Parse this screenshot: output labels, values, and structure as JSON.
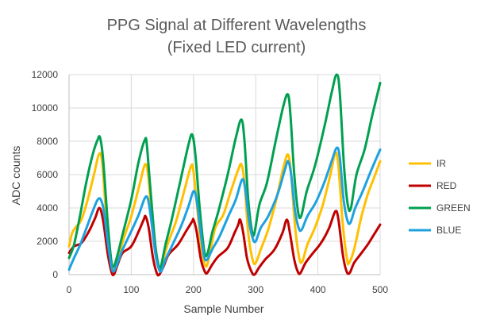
{
  "chart_data": {
    "type": "line",
    "title": [
      "PPG Signal at Different Wavelengths",
      "(Fixed LED current)"
    ],
    "xlabel": "Sample Number",
    "ylabel": "ADC counts",
    "xlim": [
      0,
      500
    ],
    "ylim": [
      0,
      12000
    ],
    "xticks": [
      0,
      100,
      200,
      300,
      400,
      500
    ],
    "yticks": [
      0,
      2000,
      4000,
      6000,
      8000,
      10000,
      12000
    ],
    "grid": true,
    "legend_position": "right",
    "series": [
      {
        "name": "IR",
        "color": "#FFC000",
        "points": [
          [
            0,
            1700
          ],
          [
            5,
            2500
          ],
          [
            12,
            2900
          ],
          [
            20,
            3300
          ],
          [
            30,
            4500
          ],
          [
            40,
            6000
          ],
          [
            48,
            7200
          ],
          [
            53,
            6800
          ],
          [
            60,
            3500
          ],
          [
            68,
            800
          ],
          [
            73,
            300
          ],
          [
            80,
            1200
          ],
          [
            88,
            2200
          ],
          [
            100,
            3500
          ],
          [
            112,
            5200
          ],
          [
            122,
            6600
          ],
          [
            127,
            6000
          ],
          [
            133,
            3500
          ],
          [
            142,
            800
          ],
          [
            146,
            300
          ],
          [
            152,
            1000
          ],
          [
            160,
            2000
          ],
          [
            172,
            3200
          ],
          [
            185,
            5000
          ],
          [
            196,
            6500
          ],
          [
            200,
            6200
          ],
          [
            206,
            4000
          ],
          [
            213,
            1500
          ],
          [
            220,
            500
          ],
          [
            226,
            1200
          ],
          [
            235,
            2800
          ],
          [
            248,
            3600
          ],
          [
            260,
            5000
          ],
          [
            272,
            6300
          ],
          [
            277,
            6600
          ],
          [
            282,
            5500
          ],
          [
            288,
            2500
          ],
          [
            295,
            900
          ],
          [
            300,
            700
          ],
          [
            308,
            1500
          ],
          [
            320,
            2700
          ],
          [
            333,
            4500
          ],
          [
            345,
            6500
          ],
          [
            352,
            7200
          ],
          [
            357,
            6000
          ],
          [
            363,
            3000
          ],
          [
            370,
            1000
          ],
          [
            375,
            800
          ],
          [
            383,
            1800
          ],
          [
            395,
            2800
          ],
          [
            408,
            4200
          ],
          [
            420,
            6000
          ],
          [
            428,
            7300
          ],
          [
            433,
            6500
          ],
          [
            440,
            3000
          ],
          [
            447,
            900
          ],
          [
            450,
            700
          ],
          [
            458,
            1500
          ],
          [
            470,
            3500
          ],
          [
            480,
            4800
          ],
          [
            490,
            5800
          ],
          [
            500,
            6800
          ]
        ]
      },
      {
        "name": "RED",
        "color": "#C00000",
        "points": [
          [
            0,
            1300
          ],
          [
            8,
            1700
          ],
          [
            20,
            1900
          ],
          [
            32,
            2600
          ],
          [
            42,
            3400
          ],
          [
            49,
            4000
          ],
          [
            55,
            3200
          ],
          [
            62,
            1300
          ],
          [
            68,
            200
          ],
          [
            72,
            0
          ],
          [
            78,
            600
          ],
          [
            86,
            1300
          ],
          [
            100,
            1700
          ],
          [
            112,
            2600
          ],
          [
            120,
            3300
          ],
          [
            123,
            3500
          ],
          [
            128,
            2800
          ],
          [
            135,
            1000
          ],
          [
            141,
            100
          ],
          [
            145,
            0
          ],
          [
            152,
            500
          ],
          [
            160,
            1200
          ],
          [
            175,
            1800
          ],
          [
            188,
            2600
          ],
          [
            198,
            3200
          ],
          [
            200,
            3300
          ],
          [
            205,
            2600
          ],
          [
            212,
            900
          ],
          [
            218,
            200
          ],
          [
            222,
            100
          ],
          [
            230,
            600
          ],
          [
            240,
            1100
          ],
          [
            255,
            1600
          ],
          [
            266,
            2500
          ],
          [
            272,
            3000
          ],
          [
            275,
            3300
          ],
          [
            280,
            2500
          ],
          [
            286,
            1000
          ],
          [
            293,
            200
          ],
          [
            298,
            0
          ],
          [
            305,
            400
          ],
          [
            315,
            900
          ],
          [
            330,
            1500
          ],
          [
            343,
            2500
          ],
          [
            350,
            3300
          ],
          [
            355,
            2500
          ],
          [
            362,
            900
          ],
          [
            368,
            150
          ],
          [
            372,
            100
          ],
          [
            380,
            700
          ],
          [
            390,
            1200
          ],
          [
            405,
            1900
          ],
          [
            418,
            2800
          ],
          [
            428,
            3800
          ],
          [
            433,
            3300
          ],
          [
            440,
            1200
          ],
          [
            446,
            200
          ],
          [
            451,
            100
          ],
          [
            458,
            700
          ],
          [
            468,
            1200
          ],
          [
            480,
            1800
          ],
          [
            490,
            2400
          ],
          [
            500,
            3000
          ]
        ]
      },
      {
        "name": "GREEN",
        "color": "#00A050",
        "points": [
          [
            0,
            1000
          ],
          [
            8,
            1800
          ],
          [
            18,
            3600
          ],
          [
            28,
            5600
          ],
          [
            38,
            7200
          ],
          [
            46,
            8100
          ],
          [
            50,
            8200
          ],
          [
            55,
            6800
          ],
          [
            62,
            3200
          ],
          [
            68,
            800
          ],
          [
            72,
            500
          ],
          [
            78,
            1200
          ],
          [
            86,
            2400
          ],
          [
            100,
            4500
          ],
          [
            112,
            6800
          ],
          [
            122,
            8100
          ],
          [
            125,
            7800
          ],
          [
            130,
            5500
          ],
          [
            138,
            2000
          ],
          [
            143,
            700
          ],
          [
            147,
            400
          ],
          [
            155,
            1800
          ],
          [
            165,
            3300
          ],
          [
            180,
            5800
          ],
          [
            192,
            7800
          ],
          [
            198,
            8400
          ],
          [
            203,
            7200
          ],
          [
            210,
            4000
          ],
          [
            217,
            1500
          ],
          [
            222,
            1200
          ],
          [
            230,
            2500
          ],
          [
            240,
            3800
          ],
          [
            255,
            6000
          ],
          [
            268,
            8200
          ],
          [
            277,
            9300
          ],
          [
            282,
            8000
          ],
          [
            288,
            4500
          ],
          [
            294,
            2600
          ],
          [
            298,
            2500
          ],
          [
            306,
            4200
          ],
          [
            318,
            5500
          ],
          [
            332,
            8000
          ],
          [
            345,
            10200
          ],
          [
            352,
            10800
          ],
          [
            356,
            9500
          ],
          [
            362,
            6000
          ],
          [
            368,
            3800
          ],
          [
            373,
            3500
          ],
          [
            382,
            5000
          ],
          [
            395,
            6500
          ],
          [
            410,
            8800
          ],
          [
            422,
            10900
          ],
          [
            430,
            12000
          ],
          [
            435,
            11000
          ],
          [
            442,
            6500
          ],
          [
            448,
            4200
          ],
          [
            453,
            4000
          ],
          [
            462,
            6000
          ],
          [
            475,
            7500
          ],
          [
            487,
            9500
          ],
          [
            500,
            11500
          ]
        ]
      },
      {
        "name": "BLUE",
        "color": "#1EA1DF",
        "points": [
          [
            0,
            300
          ],
          [
            8,
            1000
          ],
          [
            18,
            1800
          ],
          [
            28,
            2800
          ],
          [
            38,
            3800
          ],
          [
            46,
            4500
          ],
          [
            51,
            4500
          ],
          [
            56,
            3800
          ],
          [
            62,
            2000
          ],
          [
            68,
            500
          ],
          [
            72,
            200
          ],
          [
            78,
            700
          ],
          [
            86,
            1500
          ],
          [
            100,
            2600
          ],
          [
            112,
            3600
          ],
          [
            122,
            4600
          ],
          [
            127,
            4500
          ],
          [
            132,
            3300
          ],
          [
            139,
            1200
          ],
          [
            144,
            400
          ],
          [
            148,
            200
          ],
          [
            155,
            900
          ],
          [
            165,
            1700
          ],
          [
            180,
            2900
          ],
          [
            192,
            4100
          ],
          [
            200,
            5000
          ],
          [
            205,
            4500
          ],
          [
            211,
            2700
          ],
          [
            217,
            1100
          ],
          [
            222,
            900
          ],
          [
            230,
            1500
          ],
          [
            242,
            2300
          ],
          [
            256,
            3500
          ],
          [
            268,
            4500
          ],
          [
            278,
            5700
          ],
          [
            283,
            5200
          ],
          [
            289,
            3300
          ],
          [
            295,
            2200
          ],
          [
            300,
            2000
          ],
          [
            308,
            2800
          ],
          [
            320,
            3500
          ],
          [
            335,
            4800
          ],
          [
            347,
            6300
          ],
          [
            352,
            6800
          ],
          [
            357,
            6000
          ],
          [
            363,
            3900
          ],
          [
            369,
            2800
          ],
          [
            374,
            2700
          ],
          [
            383,
            3500
          ],
          [
            396,
            4300
          ],
          [
            410,
            5500
          ],
          [
            422,
            6800
          ],
          [
            430,
            7600
          ],
          [
            435,
            7100
          ],
          [
            441,
            4600
          ],
          [
            447,
            3300
          ],
          [
            452,
            3100
          ],
          [
            460,
            4000
          ],
          [
            472,
            5000
          ],
          [
            485,
            6200
          ],
          [
            500,
            7500
          ]
        ]
      }
    ]
  }
}
